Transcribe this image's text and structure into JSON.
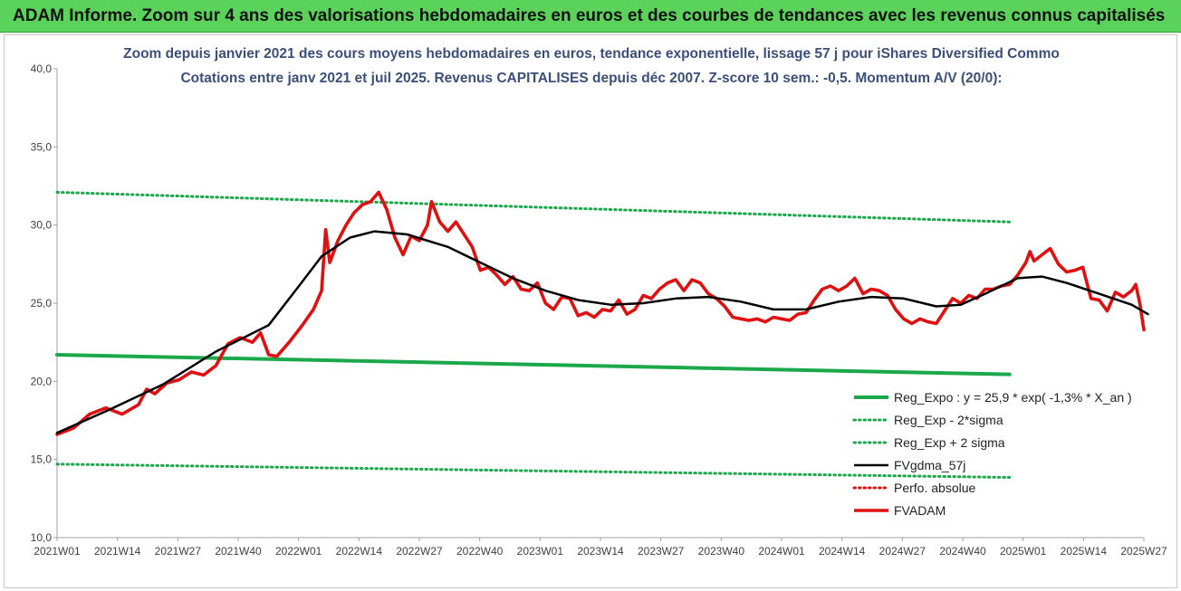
{
  "header": {
    "title": "ADAM Informe. Zoom sur 4 ans des valorisations hebdomadaires en euros et des courbes de tendances avec les revenus connus capitalisés"
  },
  "colors": {
    "header_bg": "#5bd35b",
    "green": "#1aa84a",
    "black": "#000000",
    "red": "#e01010",
    "title_text": "#3b4f7a"
  },
  "chart_data": {
    "type": "line",
    "title_lines": [
      "Zoom depuis janvier 2021 des cours moyens hebdomadaires en euros, tendance exponentielle, lissage 57 j pour iShares Diversified Commo",
      "Cotations entre janv 2021 et juil 2025. Revenus CAPITALISES depuis déc 2007. Z-score 10 sem.: -0,5. Momentum A/V (20/0):"
    ],
    "x_tick_labels": [
      "2021W01",
      "2021W14",
      "2021W27",
      "2021W40",
      "2022W01",
      "2022W14",
      "2022W27",
      "2022W40",
      "2023W01",
      "2023W14",
      "2023W27",
      "2023W40",
      "2024W01",
      "2024W14",
      "2024W27",
      "2024W40",
      "2025W01",
      "2025W14",
      "2025W27"
    ],
    "x_range_weeks": [
      0,
      235
    ],
    "y_tick_labels": [
      "10,0",
      "15,0",
      "20,0",
      "25,0",
      "30,0",
      "35,0",
      "40,0"
    ],
    "ylim": [
      10,
      40
    ],
    "grid": false,
    "legend_position": "bottom-right",
    "series": [
      {
        "name": "Reg_Expo : y = 25,9 * exp( -1,3% *  X_an )",
        "style": "solid",
        "color": "#1aa84a",
        "points": [
          [
            0,
            21.7
          ],
          [
            234,
            20.45
          ]
        ]
      },
      {
        "name": "Reg_Exp - 2*sigma",
        "style": "dotted",
        "color": "#1aa84a",
        "points": [
          [
            0,
            14.7
          ],
          [
            234,
            13.85
          ]
        ]
      },
      {
        "name": "Reg_Exp + 2 sigma",
        "style": "dotted",
        "color": "#1aa84a",
        "points": [
          [
            0,
            32.1
          ],
          [
            234,
            30.2
          ]
        ]
      },
      {
        "name": "FVgdma_57j",
        "style": "solid",
        "color": "#000000",
        "points": [
          [
            0,
            16.7
          ],
          [
            13,
            18.2
          ],
          [
            26,
            19.8
          ],
          [
            39,
            21.9
          ],
          [
            52,
            23.6
          ],
          [
            60,
            26.3
          ],
          [
            65,
            28.0
          ],
          [
            72,
            29.2
          ],
          [
            78,
            29.6
          ],
          [
            86,
            29.4
          ],
          [
            96,
            28.6
          ],
          [
            104,
            27.6
          ],
          [
            112,
            26.6
          ],
          [
            120,
            25.8
          ],
          [
            128,
            25.2
          ],
          [
            136,
            24.9
          ],
          [
            144,
            25.0
          ],
          [
            152,
            25.3
          ],
          [
            160,
            25.4
          ],
          [
            168,
            25.1
          ],
          [
            176,
            24.6
          ],
          [
            184,
            24.6
          ],
          [
            192,
            25.1
          ],
          [
            200,
            25.4
          ],
          [
            208,
            25.3
          ],
          [
            216,
            24.8
          ],
          [
            222,
            24.9
          ],
          [
            228,
            25.6
          ],
          [
            236,
            26.6
          ],
          [
            242,
            26.7
          ],
          [
            248,
            26.3
          ],
          [
            256,
            25.6
          ],
          [
            264,
            24.9
          ],
          [
            268,
            24.3
          ]
        ]
      },
      {
        "name": "Perfo. absolue",
        "style": "dotted",
        "color": "#e01010",
        "points": []
      },
      {
        "name": "FVADAM",
        "style": "solid",
        "color": "#e01010",
        "points": [
          [
            0,
            16.6
          ],
          [
            4,
            17.0
          ],
          [
            8,
            17.9
          ],
          [
            12,
            18.3
          ],
          [
            16,
            17.9
          ],
          [
            20,
            18.5
          ],
          [
            22,
            19.5
          ],
          [
            24,
            19.2
          ],
          [
            27,
            19.9
          ],
          [
            30,
            20.1
          ],
          [
            33,
            20.6
          ],
          [
            36,
            20.4
          ],
          [
            39,
            21.0
          ],
          [
            42,
            22.4
          ],
          [
            45,
            22.8
          ],
          [
            48,
            22.5
          ],
          [
            50,
            23.1
          ],
          [
            52,
            21.7
          ],
          [
            54,
            21.6
          ],
          [
            57,
            22.5
          ],
          [
            60,
            23.5
          ],
          [
            63,
            24.6
          ],
          [
            65,
            25.8
          ],
          [
            66,
            29.7
          ],
          [
            67,
            27.6
          ],
          [
            69,
            29.0
          ],
          [
            71,
            30.0
          ],
          [
            73,
            30.8
          ],
          [
            75,
            31.3
          ],
          [
            77,
            31.5
          ],
          [
            79,
            32.1
          ],
          [
            81,
            31.0
          ],
          [
            83,
            29.2
          ],
          [
            85,
            28.1
          ],
          [
            87,
            29.3
          ],
          [
            89,
            29.0
          ],
          [
            91,
            30.0
          ],
          [
            92,
            31.5
          ],
          [
            94,
            30.2
          ],
          [
            96,
            29.6
          ],
          [
            98,
            30.2
          ],
          [
            100,
            29.4
          ],
          [
            102,
            28.6
          ],
          [
            104,
            27.1
          ],
          [
            106,
            27.3
          ],
          [
            108,
            26.8
          ],
          [
            110,
            26.2
          ],
          [
            112,
            26.7
          ],
          [
            114,
            25.9
          ],
          [
            116,
            25.8
          ],
          [
            118,
            26.3
          ],
          [
            120,
            25.0
          ],
          [
            122,
            24.6
          ],
          [
            124,
            25.4
          ],
          [
            126,
            25.3
          ],
          [
            128,
            24.2
          ],
          [
            130,
            24.4
          ],
          [
            132,
            24.1
          ],
          [
            134,
            24.6
          ],
          [
            136,
            24.5
          ],
          [
            138,
            25.2
          ],
          [
            140,
            24.3
          ],
          [
            142,
            24.6
          ],
          [
            144,
            25.5
          ],
          [
            146,
            25.3
          ],
          [
            148,
            25.9
          ],
          [
            150,
            26.3
          ],
          [
            152,
            26.5
          ],
          [
            154,
            25.8
          ],
          [
            156,
            26.5
          ],
          [
            158,
            26.3
          ],
          [
            160,
            25.6
          ],
          [
            162,
            25.3
          ],
          [
            164,
            24.8
          ],
          [
            166,
            24.1
          ],
          [
            168,
            24.0
          ],
          [
            170,
            23.9
          ],
          [
            172,
            24.0
          ],
          [
            174,
            23.8
          ],
          [
            176,
            24.1
          ],
          [
            178,
            24.0
          ],
          [
            180,
            23.9
          ],
          [
            182,
            24.3
          ],
          [
            184,
            24.4
          ],
          [
            186,
            25.2
          ],
          [
            188,
            25.9
          ],
          [
            190,
            26.1
          ],
          [
            192,
            25.8
          ],
          [
            194,
            26.1
          ],
          [
            196,
            26.6
          ],
          [
            198,
            25.6
          ],
          [
            200,
            25.9
          ],
          [
            202,
            25.8
          ],
          [
            204,
            25.5
          ],
          [
            206,
            24.6
          ],
          [
            208,
            24.0
          ],
          [
            210,
            23.7
          ],
          [
            212,
            24.0
          ],
          [
            214,
            23.8
          ],
          [
            216,
            23.7
          ],
          [
            218,
            24.5
          ],
          [
            220,
            25.3
          ],
          [
            222,
            25.0
          ],
          [
            224,
            25.5
          ],
          [
            226,
            25.3
          ],
          [
            228,
            25.9
          ],
          [
            230,
            25.9
          ],
          [
            232,
            26.1
          ],
          [
            234,
            26.2
          ],
          [
            236,
            26.8
          ],
          [
            238,
            27.6
          ],
          [
            239,
            28.3
          ],
          [
            240,
            27.7
          ],
          [
            242,
            28.1
          ],
          [
            244,
            28.5
          ],
          [
            246,
            27.5
          ],
          [
            248,
            27.0
          ],
          [
            250,
            27.1
          ],
          [
            252,
            27.3
          ],
          [
            254,
            25.3
          ],
          [
            256,
            25.2
          ],
          [
            258,
            24.5
          ],
          [
            260,
            25.7
          ],
          [
            262,
            25.4
          ],
          [
            264,
            25.8
          ],
          [
            265,
            26.2
          ],
          [
            266,
            25.0
          ],
          [
            267,
            23.3
          ]
        ]
      }
    ]
  }
}
